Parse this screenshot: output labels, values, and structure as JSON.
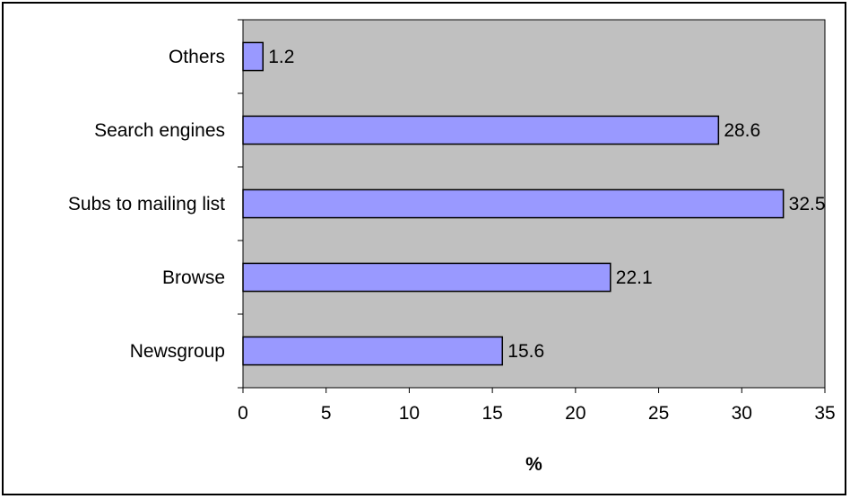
{
  "chart_data": {
    "type": "bar",
    "orientation": "horizontal",
    "categories": [
      "Newsgroup",
      "Browse",
      "Subs to mailing list",
      "Search engines",
      "Others"
    ],
    "values": [
      15.6,
      22.1,
      32.5,
      28.6,
      1.2
    ],
    "data_labels": [
      "15.6",
      "22.1",
      "32.5",
      "28.6",
      "1.2"
    ],
    "title": "",
    "xlabel": "%",
    "ylabel": "",
    "xlim": [
      0,
      35
    ],
    "xticks": [
      0,
      5,
      10,
      15,
      20,
      25,
      30,
      35
    ],
    "grid": false,
    "legend": "none",
    "colors": {
      "plot_background": "#c0c0c0",
      "bar_fill": "#9999ff",
      "bar_stroke": "#000000"
    }
  }
}
